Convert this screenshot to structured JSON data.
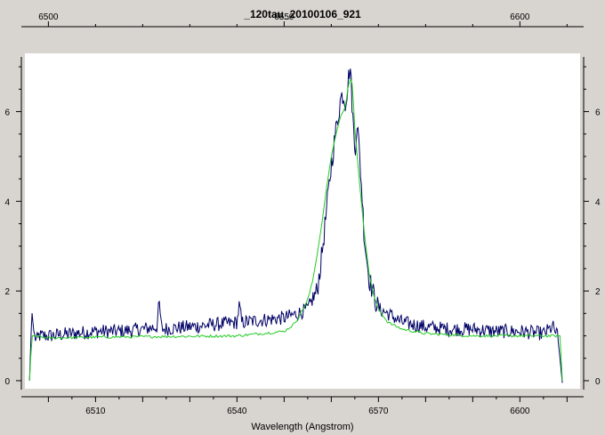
{
  "chart_data": {
    "type": "line",
    "title": "_120tau_20100106_921",
    "xlabel": "Wavelength (Angstrom)",
    "ylabel": "",
    "xlim": [
      6495.4,
      6612.2
    ],
    "ylim": [
      -0.12,
      7.12
    ],
    "bottom_ticks": [
      6510,
      6540,
      6570,
      6600
    ],
    "top_ticks": [
      6500,
      6550,
      6600
    ],
    "y_ticks": [
      0,
      2,
      4,
      6
    ],
    "grid": false,
    "colors": {
      "background": "#d8d5d0",
      "plot_bg": "#ffffff"
    },
    "series": [
      {
        "color": "#000066",
        "x": [
          6496.0,
          6496.5,
          6497.0,
          6497.5,
          6498,
          6500,
          6505,
          6510,
          6515,
          6520,
          6523,
          6523.5,
          6524,
          6530,
          6535,
          6540,
          6540.5,
          6541,
          6545,
          6550,
          6553,
          6555,
          6557,
          6558,
          6559,
          6560,
          6561,
          6562,
          6562.5,
          6563,
          6563.5,
          6564,
          6564.5,
          6565,
          6565.5,
          6566,
          6566.5,
          6567,
          6568,
          6569,
          6570,
          6572,
          6575,
          6580,
          6585,
          6590,
          6595,
          6600,
          6605,
          6607,
          6608,
          6608.5,
          6609
        ],
        "values": [
          0.0,
          1.55,
          1.0,
          0.9,
          1.0,
          1.0,
          1.05,
          1.1,
          1.1,
          1.15,
          1.2,
          1.75,
          1.15,
          1.2,
          1.25,
          1.3,
          1.7,
          1.3,
          1.35,
          1.4,
          1.5,
          1.6,
          2.0,
          2.8,
          3.8,
          4.8,
          5.6,
          6.3,
          6.4,
          6.2,
          6.6,
          7.05,
          6.0,
          5.1,
          5.8,
          5.0,
          4.2,
          3.2,
          2.3,
          1.9,
          1.6,
          1.5,
          1.3,
          1.2,
          1.15,
          1.15,
          1.1,
          1.1,
          1.05,
          1.2,
          1.0,
          0.5,
          -0.05
        ]
      },
      {
        "color": "#22cc22",
        "x": [
          6496.0,
          6496.5,
          6497,
          6500,
          6510,
          6520,
          6530,
          6540,
          6545,
          6550,
          6552,
          6553,
          6554,
          6555,
          6556,
          6557,
          6558,
          6559,
          6560,
          6561,
          6562,
          6563,
          6563.5,
          6564,
          6564.5,
          6565,
          6566,
          6567,
          6568,
          6569,
          6570,
          6572,
          6575,
          6580,
          6590,
          6600,
          6605,
          6608,
          6608.5,
          6609
        ],
        "values": [
          0.0,
          1.0,
          1.0,
          0.95,
          0.97,
          0.98,
          0.99,
          1.0,
          1.05,
          1.1,
          1.25,
          1.4,
          1.6,
          1.8,
          2.2,
          2.8,
          3.5,
          4.3,
          5.0,
          5.5,
          5.9,
          6.1,
          6.5,
          6.75,
          6.6,
          5.6,
          4.4,
          3.3,
          2.4,
          1.9,
          1.6,
          1.3,
          1.15,
          1.05,
          1.0,
          1.0,
          1.0,
          1.0,
          1.0,
          0.0
        ]
      }
    ]
  }
}
